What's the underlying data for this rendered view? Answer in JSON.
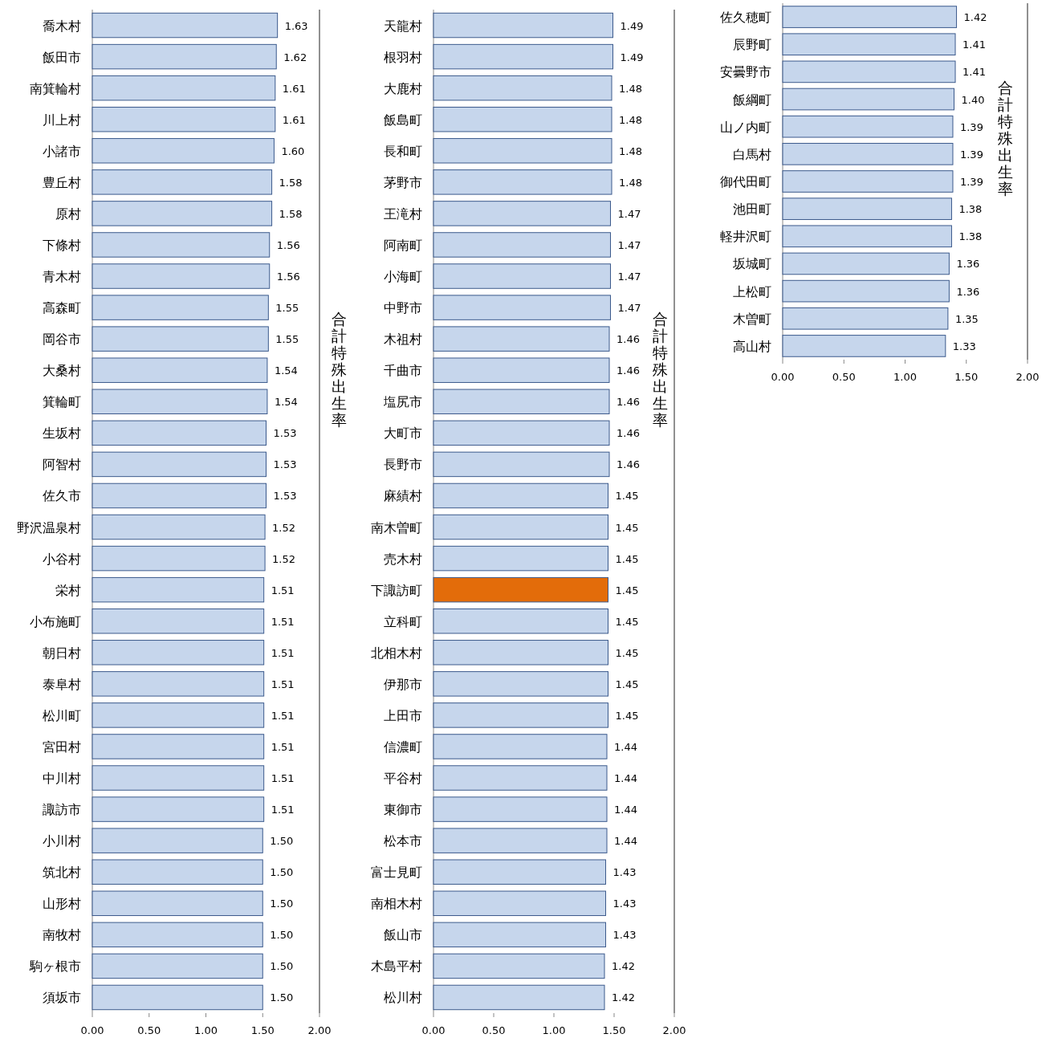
{
  "chart_data": [
    {
      "type": "bar",
      "orientation": "horizontal",
      "ylabel": "合計特殊出生率",
      "categories": [
        "喬木村",
        "飯田市",
        "南箕輪村",
        "川上村",
        "小諸市",
        "豊丘村",
        "原村",
        "下條村",
        "青木村",
        "高森町",
        "岡谷市",
        "大桑村",
        "箕輪町",
        "生坂村",
        "阿智村",
        "佐久市",
        "野沢温泉村",
        "小谷村",
        "栄村",
        "小布施町",
        "朝日村",
        "泰阜村",
        "松川町",
        "宮田村",
        "中川村",
        "諏訪市",
        "小川村",
        "筑北村",
        "山形村",
        "南牧村",
        "駒ヶ根市",
        "須坂市"
      ],
      "values": [
        1.63,
        1.62,
        1.61,
        1.61,
        1.6,
        1.58,
        1.58,
        1.56,
        1.56,
        1.55,
        1.55,
        1.54,
        1.54,
        1.53,
        1.53,
        1.53,
        1.52,
        1.52,
        1.51,
        1.51,
        1.51,
        1.51,
        1.51,
        1.51,
        1.51,
        1.51,
        1.5,
        1.5,
        1.5,
        1.5,
        1.5,
        1.5
      ],
      "value_labels": [
        "1.63",
        "1.62",
        "1.61",
        "1.61",
        "1.60",
        "1.58",
        "1.58",
        "1.56",
        "1.56",
        "1.55",
        "1.55",
        "1.54",
        "1.54",
        "1.53",
        "1.53",
        "1.53",
        "1.52",
        "1.52",
        "1.51",
        "1.51",
        "1.51",
        "1.51",
        "1.51",
        "1.51",
        "1.51",
        "1.51",
        "1.50",
        "1.50",
        "1.50",
        "1.50",
        "1.50",
        "1.50"
      ],
      "colors": [
        "#c6d6ec",
        "#c6d6ec",
        "#c6d6ec",
        "#c6d6ec",
        "#c6d6ec",
        "#c6d6ec",
        "#c6d6ec",
        "#c6d6ec",
        "#c6d6ec",
        "#c6d6ec",
        "#c6d6ec",
        "#c6d6ec",
        "#c6d6ec",
        "#c6d6ec",
        "#c6d6ec",
        "#c6d6ec",
        "#c6d6ec",
        "#c6d6ec",
        "#c6d6ec",
        "#c6d6ec",
        "#c6d6ec",
        "#c6d6ec",
        "#c6d6ec",
        "#c6d6ec",
        "#c6d6ec",
        "#c6d6ec",
        "#c6d6ec",
        "#c6d6ec",
        "#c6d6ec",
        "#c6d6ec",
        "#c6d6ec",
        "#c6d6ec"
      ],
      "xlim": [
        0,
        2
      ],
      "xticks": [
        {
          "value": 0,
          "label": "0.00"
        },
        {
          "value": 0.5,
          "label": "0.50"
        },
        {
          "value": 1,
          "label": "1.00"
        },
        {
          "value": 1.5,
          "label": "1.50"
        },
        {
          "value": 2,
          "label": "2.00"
        }
      ]
    },
    {
      "type": "bar",
      "orientation": "horizontal",
      "ylabel": "合計特殊出生率",
      "categories": [
        "天龍村",
        "根羽村",
        "大鹿村",
        "飯島町",
        "長和町",
        "茅野市",
        "王滝村",
        "阿南町",
        "小海町",
        "中野市",
        "木祖村",
        "千曲市",
        "塩尻市",
        "大町市",
        "長野市",
        "麻績村",
        "南木曽町",
        "売木村",
        "下諏訪町",
        "立科町",
        "北相木村",
        "伊那市",
        "上田市",
        "信濃町",
        "平谷村",
        "東御市",
        "松本市",
        "富士見町",
        "南相木村",
        "飯山市",
        "木島平村",
        "松川村"
      ],
      "values": [
        1.49,
        1.49,
        1.48,
        1.48,
        1.48,
        1.48,
        1.47,
        1.47,
        1.47,
        1.47,
        1.46,
        1.46,
        1.46,
        1.46,
        1.46,
        1.45,
        1.45,
        1.45,
        1.45,
        1.45,
        1.45,
        1.45,
        1.45,
        1.44,
        1.44,
        1.44,
        1.44,
        1.43,
        1.43,
        1.43,
        1.42,
        1.42
      ],
      "value_labels": [
        "1.49",
        "1.49",
        "1.48",
        "1.48",
        "1.48",
        "1.48",
        "1.47",
        "1.47",
        "1.47",
        "1.47",
        "1.46",
        "1.46",
        "1.46",
        "1.46",
        "1.46",
        "1.45",
        "1.45",
        "1.45",
        "1.45",
        "1.45",
        "1.45",
        "1.45",
        "1.45",
        "1.44",
        "1.44",
        "1.44",
        "1.44",
        "1.43",
        "1.43",
        "1.43",
        "1.42",
        "1.42"
      ],
      "colors": [
        "#c6d6ec",
        "#c6d6ec",
        "#c6d6ec",
        "#c6d6ec",
        "#c6d6ec",
        "#c6d6ec",
        "#c6d6ec",
        "#c6d6ec",
        "#c6d6ec",
        "#c6d6ec",
        "#c6d6ec",
        "#c6d6ec",
        "#c6d6ec",
        "#c6d6ec",
        "#c6d6ec",
        "#c6d6ec",
        "#c6d6ec",
        "#c6d6ec",
        "#e36c0a",
        "#c6d6ec",
        "#c6d6ec",
        "#c6d6ec",
        "#c6d6ec",
        "#c6d6ec",
        "#c6d6ec",
        "#c6d6ec",
        "#c6d6ec",
        "#c6d6ec",
        "#c6d6ec",
        "#c6d6ec",
        "#c6d6ec",
        "#c6d6ec"
      ],
      "xlim": [
        0,
        2
      ],
      "xticks": [
        {
          "value": 0,
          "label": "0.00"
        },
        {
          "value": 0.5,
          "label": "0.50"
        },
        {
          "value": 1,
          "label": "1.00"
        },
        {
          "value": 1.5,
          "label": "1.50"
        },
        {
          "value": 2,
          "label": "2.00"
        }
      ]
    },
    {
      "type": "bar",
      "orientation": "horizontal",
      "ylabel": "合計特殊出生率",
      "categories": [
        "佐久穂町",
        "辰野町",
        "安曇野市",
        "飯綱町",
        "山ノ内町",
        "白馬村",
        "御代田町",
        "池田町",
        "軽井沢町",
        "坂城町",
        "上松町",
        "木曽町",
        "高山村"
      ],
      "values": [
        1.42,
        1.41,
        1.41,
        1.4,
        1.39,
        1.39,
        1.39,
        1.38,
        1.38,
        1.36,
        1.36,
        1.35,
        1.33
      ],
      "value_labels": [
        "1.42",
        "1.41",
        "1.41",
        "1.40",
        "1.39",
        "1.39",
        "1.39",
        "1.38",
        "1.38",
        "1.36",
        "1.36",
        "1.35",
        "1.33"
      ],
      "colors": [
        "#c6d6ec",
        "#c6d6ec",
        "#c6d6ec",
        "#c6d6ec",
        "#c6d6ec",
        "#c6d6ec",
        "#c6d6ec",
        "#c6d6ec",
        "#c6d6ec",
        "#c6d6ec",
        "#c6d6ec",
        "#c6d6ec",
        "#c6d6ec"
      ],
      "xlim": [
        0,
        2
      ],
      "xticks": [
        {
          "value": 0,
          "label": "0.00"
        },
        {
          "value": 0.5,
          "label": "0.50"
        },
        {
          "value": 1,
          "label": "1.00"
        },
        {
          "value": 1.5,
          "label": "1.50"
        },
        {
          "value": 2,
          "label": "2.00"
        }
      ]
    }
  ]
}
